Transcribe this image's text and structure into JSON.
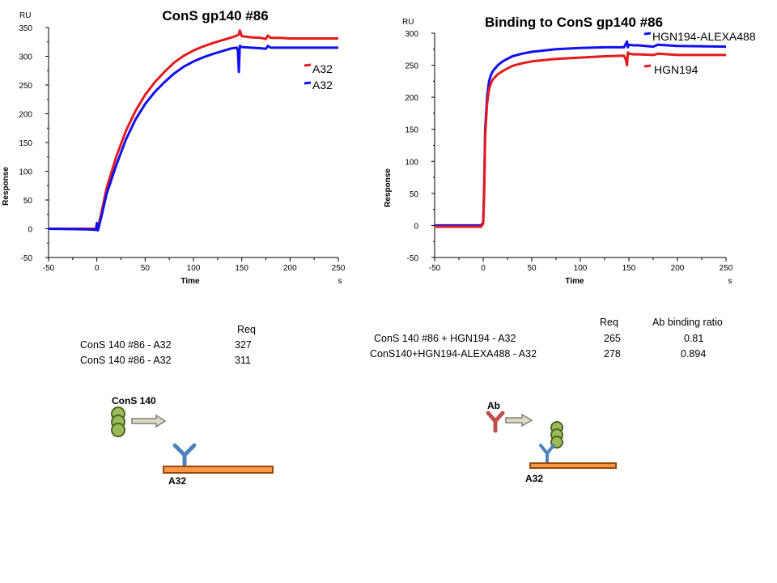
{
  "chart_data": [
    {
      "type": "line",
      "title": "ConS gp140 #86",
      "xlabel": "Time",
      "ylabel": "Response",
      "y_unit": "RU",
      "x_unit": "s",
      "xlim": [
        -50,
        250
      ],
      "ylim": [
        -50,
        350
      ],
      "xticks": [
        "-50",
        "0",
        "50",
        "100",
        "150",
        "200",
        "250"
      ],
      "yticks": [
        "-50",
        "0",
        "50",
        "100",
        "150",
        "200",
        "250",
        "300",
        "350"
      ],
      "grid": false,
      "legend_position": "right",
      "series": [
        {
          "name": "A32",
          "color": "#e41a1c",
          "x": [
            -50,
            -20,
            -2,
            0,
            1,
            2,
            3,
            5,
            10,
            20,
            30,
            40,
            50,
            60,
            70,
            80,
            90,
            100,
            110,
            120,
            130,
            140,
            145,
            147,
            148,
            150,
            160,
            170,
            175,
            177,
            180,
            190,
            200,
            250
          ],
          "y": [
            0,
            0,
            0,
            0,
            -2,
            5,
            15,
            30,
            70,
            125,
            170,
            205,
            233,
            255,
            273,
            289,
            301,
            310,
            317,
            323,
            328,
            333,
            336,
            338,
            345,
            335,
            333,
            332,
            330,
            336,
            332,
            332,
            331,
            331
          ]
        },
        {
          "name": "A32",
          "color": "#1010ee",
          "x": [
            -50,
            -10,
            -1,
            0,
            1,
            2,
            3,
            5,
            10,
            20,
            30,
            40,
            50,
            60,
            70,
            80,
            90,
            100,
            110,
            120,
            130,
            140,
            145,
            146,
            147,
            148,
            150,
            160,
            170,
            175,
            177,
            180,
            190,
            200,
            250
          ],
          "y": [
            0,
            -1,
            -2,
            10,
            -3,
            3,
            10,
            23,
            60,
            110,
            155,
            190,
            217,
            238,
            255,
            270,
            282,
            291,
            298,
            304,
            309,
            314,
            315,
            310,
            273,
            318,
            316,
            315,
            314,
            313,
            318,
            315,
            315,
            315,
            315
          ]
        }
      ]
    },
    {
      "type": "line",
      "title": "Binding to ConS gp140 #86",
      "xlabel": "Time",
      "ylabel": "Response",
      "y_unit": "RU",
      "x_unit": "s",
      "xlim": [
        -50,
        250
      ],
      "ylim": [
        -50,
        300
      ],
      "xticks": [
        "-50",
        "0",
        "50",
        "100",
        "150",
        "200",
        "250"
      ],
      "yticks": [
        "-50",
        "0",
        "50",
        "100",
        "150",
        "200",
        "250",
        "300"
      ],
      "grid": false,
      "legend_position": "top-right",
      "series": [
        {
          "name": "HGN194-ALEXA488",
          "color": "#1010ee",
          "x": [
            -50,
            -10,
            -2,
            0,
            1,
            2,
            4,
            6,
            8,
            10,
            15,
            20,
            30,
            40,
            50,
            75,
            100,
            125,
            145,
            148,
            149,
            150,
            155,
            160,
            175,
            180,
            200,
            250
          ],
          "y": [
            0,
            0,
            0,
            5,
            60,
            150,
            200,
            225,
            235,
            241,
            250,
            256,
            264,
            268,
            271,
            275,
            277,
            278,
            278,
            287,
            278,
            282,
            281,
            281,
            279,
            282,
            280,
            279
          ]
        },
        {
          "name": "HGN194",
          "color": "#e41a1c",
          "x": [
            -50,
            -10,
            -2,
            0,
            1,
            2,
            4,
            6,
            8,
            10,
            15,
            20,
            30,
            40,
            50,
            75,
            100,
            125,
            145,
            147,
            148,
            149,
            150,
            155,
            160,
            175,
            180,
            200,
            250
          ],
          "y": [
            -2,
            -2,
            -2,
            3,
            50,
            140,
            190,
            212,
            222,
            228,
            236,
            241,
            249,
            253,
            256,
            260,
            262,
            264,
            265,
            258,
            250,
            270,
            268,
            267,
            267,
            266,
            268,
            266,
            266
          ]
        }
      ]
    }
  ],
  "tables": {
    "left": {
      "header_req": "Req",
      "rows": [
        {
          "name": "ConS 140 #86 - A32",
          "req": "327"
        },
        {
          "name": "ConS 140 #86 - A32",
          "req": "311"
        }
      ]
    },
    "right": {
      "header_req": "Req",
      "header_ratio": "Ab binding ratio",
      "rows": [
        {
          "name": "ConS 140 #86 + HGN194 - A32",
          "req": "265",
          "ratio": "0.81"
        },
        {
          "name": "ConS140+HGN194-ALEXA488  - A32",
          "req": "278",
          "ratio": "0.894"
        }
      ]
    }
  },
  "diagrams": {
    "left": {
      "top_label": "ConS 140",
      "bottom_label": "A32"
    },
    "right": {
      "top_label": "Ab",
      "bottom_label": "A32"
    }
  }
}
